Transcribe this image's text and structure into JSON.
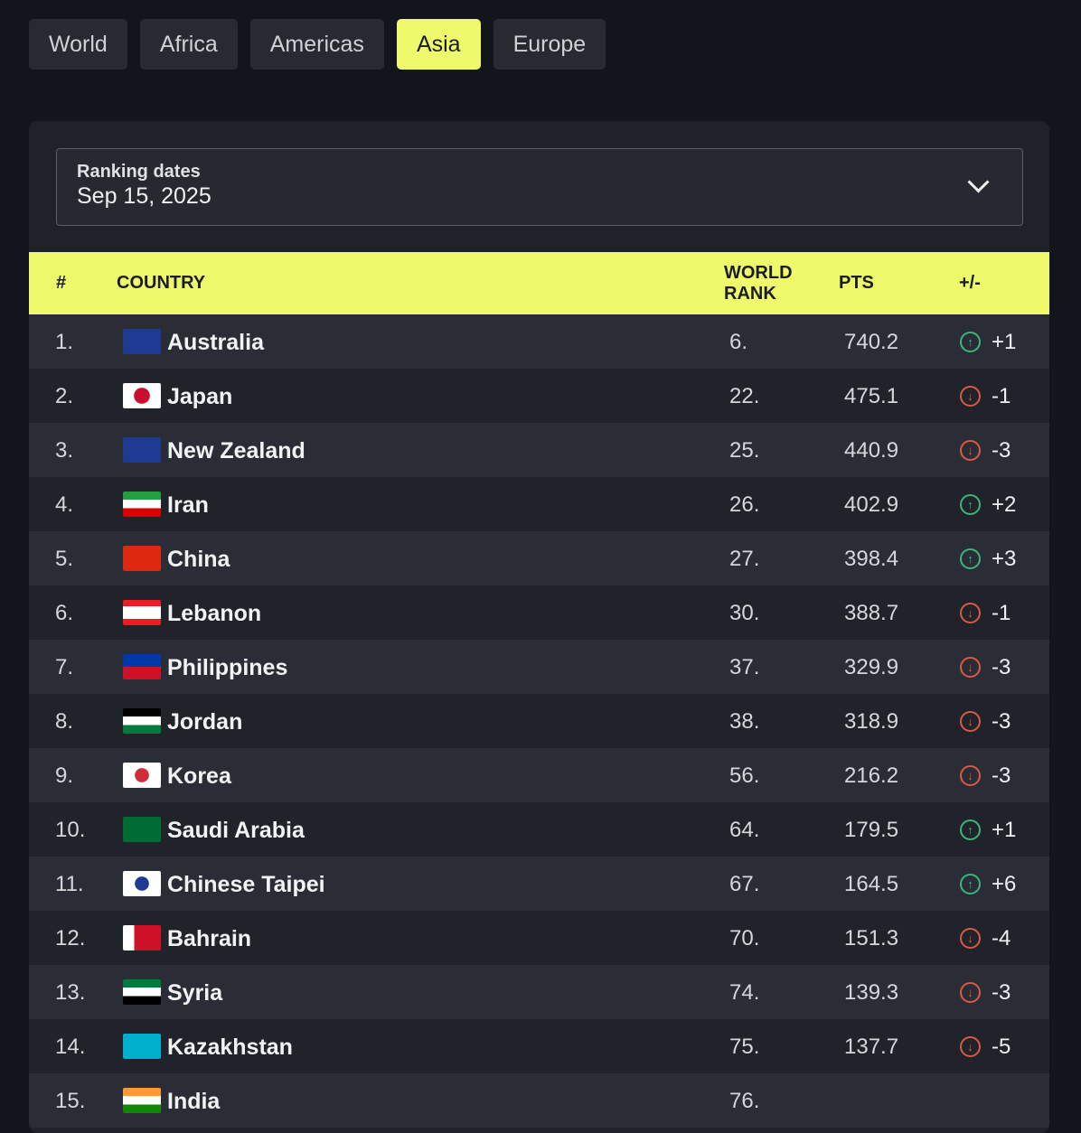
{
  "tabs": [
    {
      "label": "World"
    },
    {
      "label": "Africa"
    },
    {
      "label": "Americas"
    },
    {
      "label": "Asia",
      "active": true
    },
    {
      "label": "Europe"
    }
  ],
  "dropdown": {
    "label": "Ranking dates",
    "value": "Sep 15, 2025"
  },
  "table": {
    "headers": {
      "rank": "#",
      "country": "COUNTRY",
      "world_rank": "WORLD RANK",
      "pts": "PTS",
      "change": "+/-"
    },
    "rows": [
      {
        "rank": "1.",
        "country": "Australia",
        "world_rank": "6.",
        "pts": "740.2",
        "dir": "up",
        "change": "+1",
        "flag": "linear-gradient(#1f3a93,#1f3a93)"
      },
      {
        "rank": "2.",
        "country": "Japan",
        "world_rank": "22.",
        "pts": "475.1",
        "dir": "down",
        "change": "-1",
        "flag": "radial-gradient(circle,#c8102e 34%,#fff 36%)"
      },
      {
        "rank": "3.",
        "country": "New Zealand",
        "world_rank": "25.",
        "pts": "440.9",
        "dir": "down",
        "change": "-3",
        "flag": "linear-gradient(#1f3a93,#1f3a93)"
      },
      {
        "rank": "4.",
        "country": "Iran",
        "world_rank": "26.",
        "pts": "402.9",
        "dir": "up",
        "change": "+2",
        "flag": "linear-gradient(#239f40 33%,#fff 33% 66%,#da0000 66%)"
      },
      {
        "rank": "5.",
        "country": "China",
        "world_rank": "27.",
        "pts": "398.4",
        "dir": "up",
        "change": "+3",
        "flag": "linear-gradient(#de2910,#de2910)"
      },
      {
        "rank": "6.",
        "country": "Lebanon",
        "world_rank": "30.",
        "pts": "388.7",
        "dir": "down",
        "change": "-1",
        "flag": "linear-gradient(#ed1c24 25%,#fff 25% 75%,#ed1c24 75%)"
      },
      {
        "rank": "7.",
        "country": "Philippines",
        "world_rank": "37.",
        "pts": "329.9",
        "dir": "down",
        "change": "-3",
        "flag": "linear-gradient(#0038a8 50%,#ce1126 50%)"
      },
      {
        "rank": "8.",
        "country": "Jordan",
        "world_rank": "38.",
        "pts": "318.9",
        "dir": "down",
        "change": "-3",
        "flag": "linear-gradient(#000 33%,#fff 33% 66%,#007a3d 66%)"
      },
      {
        "rank": "9.",
        "country": "Korea",
        "world_rank": "56.",
        "pts": "216.2",
        "dir": "down",
        "change": "-3",
        "flag": "radial-gradient(circle,#cd2e3a 30%,#fff 32%)"
      },
      {
        "rank": "10.",
        "country": "Saudi Arabia",
        "world_rank": "64.",
        "pts": "179.5",
        "dir": "up",
        "change": "+1",
        "flag": "linear-gradient(#006c35,#006c35)"
      },
      {
        "rank": "11.",
        "country": "Chinese Taipei",
        "world_rank": "67.",
        "pts": "164.5",
        "dir": "up",
        "change": "+6",
        "flag": "radial-gradient(circle,#1f3a93 30%,#fff 32%)"
      },
      {
        "rank": "12.",
        "country": "Bahrain",
        "world_rank": "70.",
        "pts": "151.3",
        "dir": "down",
        "change": "-4",
        "flag": "linear-gradient(90deg,#fff 30%,#ce1126 30%)"
      },
      {
        "rank": "13.",
        "country": "Syria",
        "world_rank": "74.",
        "pts": "139.3",
        "dir": "down",
        "change": "-3",
        "flag": "linear-gradient(#007a3d 33%,#fff 33% 66%,#000 66%)"
      },
      {
        "rank": "14.",
        "country": "Kazakhstan",
        "world_rank": "75.",
        "pts": "137.7",
        "dir": "down",
        "change": "-5",
        "flag": "linear-gradient(#00afca,#00afca)"
      },
      {
        "rank": "15.",
        "country": "India",
        "world_rank": "76.",
        "pts": "",
        "dir": "",
        "change": "",
        "flag": "linear-gradient(#ff9933 33%,#fff 33% 66%,#138808 66%)"
      }
    ]
  }
}
